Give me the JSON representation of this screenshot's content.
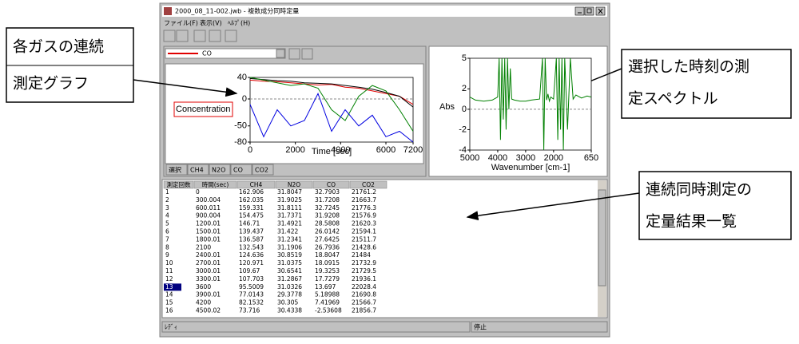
{
  "window": {
    "title": "2000_08_11-002.jwb - 複数成分同時定量",
    "menu": [
      "ファイル(F)",
      "表示(V)",
      "ﾍﾙﾌﾟ(H)"
    ],
    "combo": "CO",
    "tabs": [
      "選択",
      "CH4",
      "N2O",
      "CO",
      "CO2"
    ],
    "status": [
      "ﾚﾃﾞｨ",
      "停止"
    ]
  },
  "chart_data": [
    {
      "type": "line",
      "ylabel": "Concentration",
      "xlabel": "Time [sec]",
      "xlim": [
        0,
        7200
      ],
      "ylim": [
        -80,
        40
      ],
      "xticks": [
        0,
        2000,
        4000,
        6000,
        7200
      ],
      "yticks": [
        40,
        0,
        -50,
        -80
      ],
      "hline": 0,
      "x": [
        0,
        600,
        1200,
        1800,
        2400,
        3000,
        3600,
        4200,
        4800,
        5400,
        6000,
        6600,
        7200
      ],
      "series": [
        {
          "color": "#e00000",
          "values": [
            35,
            33,
            32,
            30,
            28,
            26,
            27,
            22,
            20,
            15,
            10,
            5,
            -10
          ]
        },
        {
          "color": "#000000",
          "values": [
            38,
            36,
            34,
            33,
            30,
            29,
            28,
            25,
            22,
            18,
            12,
            5,
            -15
          ]
        },
        {
          "color": "#008000",
          "values": [
            40,
            35,
            30,
            25,
            28,
            20,
            -20,
            -40,
            5,
            25,
            15,
            -20,
            -60
          ]
        },
        {
          "color": "#0000e0",
          "values": [
            -10,
            -70,
            -20,
            -50,
            -40,
            10,
            -60,
            -20,
            -50,
            -30,
            -70,
            -60,
            -80
          ]
        }
      ]
    },
    {
      "type": "line",
      "ylabel": "Abs",
      "xlabel": "Wavenumber [cm-1]",
      "xlim": [
        5000,
        650
      ],
      "ylim": [
        -4,
        5
      ],
      "xticks": [
        5000,
        4000,
        3000,
        2000,
        650
      ],
      "yticks": [
        5,
        2,
        0,
        -2,
        -4
      ],
      "hline": 0,
      "x": [
        5000,
        4800,
        4500,
        4200,
        4000,
        3950,
        3900,
        3850,
        3800,
        3750,
        3700,
        3650,
        3600,
        3550,
        3500,
        3400,
        3200,
        3000,
        2800,
        2500,
        2400,
        2350,
        2300,
        2250,
        2200,
        2150,
        2100,
        2000,
        1900,
        1850,
        1800,
        1750,
        1700,
        1650,
        1600,
        1500,
        1400,
        1300,
        1200,
        1000,
        800,
        650
      ],
      "series": [
        {
          "color": "#008000",
          "values": [
            1.2,
            0.9,
            0.8,
            0.9,
            1.2,
            5,
            -3,
            5,
            -1,
            5,
            -2,
            5,
            0,
            4,
            1,
            0.9,
            0.8,
            0.8,
            0.9,
            1.0,
            5,
            -4,
            5,
            0.9,
            1.5,
            0.8,
            1.2,
            1.0,
            5,
            -3,
            5,
            -2,
            5,
            -4,
            5,
            -2,
            5,
            1,
            1.4,
            1.1,
            1.3,
            1.2
          ]
        }
      ]
    }
  ],
  "table": {
    "columns": [
      "測定回数",
      "時間(sec)",
      "CH4",
      "N2O",
      "CO",
      "CO2"
    ],
    "selected_row": 12,
    "rows": [
      [
        "1",
        "0",
        "162.906",
        "31.8047",
        "32.7903",
        "21761.2"
      ],
      [
        "2",
        "300.004",
        "162.035",
        "31.9025",
        "31.7208",
        "21663.7"
      ],
      [
        "3",
        "600.011",
        "159.331",
        "31.8111",
        "32.7245",
        "21776.3"
      ],
      [
        "4",
        "900.004",
        "154.475",
        "31.7371",
        "31.9208",
        "21576.9"
      ],
      [
        "5",
        "1200.01",
        "146.71",
        "31.4921",
        "28.5808",
        "21620.3"
      ],
      [
        "6",
        "1500.01",
        "139.437",
        "31.422",
        "26.0142",
        "21594.1"
      ],
      [
        "7",
        "1800.01",
        "136.587",
        "31.2341",
        "27.6425",
        "21511.7"
      ],
      [
        "8",
        "2100",
        "132.543",
        "31.1906",
        "26.7936",
        "21428.6"
      ],
      [
        "9",
        "2400.01",
        "124.636",
        "30.8519",
        "18.8047",
        "21484"
      ],
      [
        "10",
        "2700.01",
        "120.971",
        "31.0375",
        "18.0915",
        "21732.9"
      ],
      [
        "11",
        "3000.01",
        "109.67",
        "30.6541",
        "19.3253",
        "21729.5"
      ],
      [
        "12",
        "3300.01",
        "107.703",
        "31.2867",
        "17.7279",
        "21936.1"
      ],
      [
        "13",
        "3600",
        "95.5009",
        "31.0326",
        "13.697",
        "22028.4"
      ],
      [
        "14",
        "3900.01",
        "77.0143",
        "29.3778",
        "5.18988",
        "21690.8"
      ],
      [
        "15",
        "4200",
        "82.1532",
        "30.305",
        "7.41969",
        "21566.7"
      ],
      [
        "16",
        "4500.02",
        "73.716",
        "30.4338",
        "-2.53608",
        "21856.7"
      ]
    ]
  },
  "annotations": [
    {
      "lines": [
        "各ガスの連続",
        "測定グラフ"
      ]
    },
    {
      "lines": [
        "選択した時刻の測",
        "定スペクトル"
      ]
    },
    {
      "lines": [
        "連続同時測定の",
        "定量結果一覧"
      ]
    }
  ]
}
